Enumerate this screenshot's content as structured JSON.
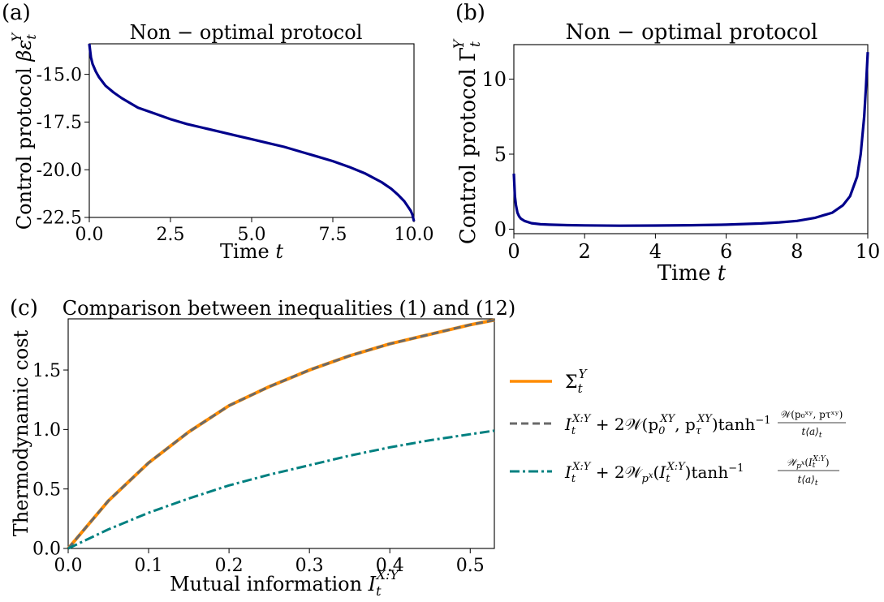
{
  "chart_data": [
    {
      "type": "line",
      "panel": "(a)",
      "title": "Non − optimal protocol",
      "xlabel": "Time t",
      "ylabel": "Control protocol βε_t^Y",
      "xlim": [
        0,
        10
      ],
      "ylim": [
        -22.5,
        -13.4
      ],
      "xticks": [
        "0.0",
        "2.5",
        "5.0",
        "7.5",
        "10.0"
      ],
      "yticks": [
        "-15.0",
        "-17.5",
        "-20.0",
        "-22.5"
      ],
      "grid": false,
      "series": [
        {
          "color": "#00008b",
          "x": [
            0,
            0.05,
            0.1,
            0.2,
            0.3,
            0.5,
            0.75,
            1,
            1.5,
            2,
            2.5,
            3,
            3.5,
            4,
            4.5,
            5,
            5.5,
            6,
            6.5,
            7,
            7.5,
            8,
            8.5,
            9,
            9.3,
            9.5,
            9.7,
            9.8,
            9.9,
            9.95,
            10
          ],
          "y": [
            -13.4,
            -14.1,
            -14.45,
            -14.85,
            -15.15,
            -15.6,
            -15.95,
            -16.25,
            -16.75,
            -17.05,
            -17.35,
            -17.6,
            -17.8,
            -18.0,
            -18.2,
            -18.4,
            -18.6,
            -18.8,
            -19.05,
            -19.3,
            -19.55,
            -19.85,
            -20.2,
            -20.65,
            -21.0,
            -21.3,
            -21.65,
            -21.9,
            -22.15,
            -22.35,
            -22.7
          ]
        }
      ]
    },
    {
      "type": "line",
      "panel": "(b)",
      "title": "Non − optimal protocol",
      "xlabel": "Time t",
      "ylabel": "Control protocol Γ_t^Y",
      "xlim": [
        0,
        10
      ],
      "ylim": [
        -0.3,
        12.3
      ],
      "xticks": [
        "0",
        "2",
        "4",
        "6",
        "8",
        "10"
      ],
      "yticks": [
        "0",
        "5",
        "10"
      ],
      "grid": false,
      "series": [
        {
          "color": "#00008b",
          "x": [
            0,
            0.03,
            0.06,
            0.1,
            0.15,
            0.2,
            0.3,
            0.5,
            0.75,
            1,
            1.5,
            2,
            3,
            4,
            5,
            6,
            7,
            7.5,
            8,
            8.5,
            9,
            9.3,
            9.5,
            9.7,
            9.8,
            9.9,
            9.95,
            10
          ],
          "y": [
            3.7,
            2.2,
            1.6,
            1.1,
            0.85,
            0.7,
            0.55,
            0.4,
            0.33,
            0.3,
            0.27,
            0.25,
            0.23,
            0.24,
            0.26,
            0.3,
            0.38,
            0.45,
            0.55,
            0.75,
            1.1,
            1.6,
            2.2,
            3.5,
            5.0,
            7.5,
            9.5,
            11.8
          ]
        }
      ]
    },
    {
      "type": "line",
      "panel": "(c)",
      "title": "Comparison between inequalities (1) and (12)",
      "xlabel": "Mutual information I_t^{X:Y}",
      "ylabel": "Thermodynamic cost",
      "xlim": [
        0,
        0.53
      ],
      "ylim": [
        0,
        1.93
      ],
      "xticks": [
        "0.0",
        "0.1",
        "0.2",
        "0.3",
        "0.4",
        "0.5"
      ],
      "yticks": [
        "0.0",
        "0.5",
        "1.0",
        "1.5"
      ],
      "grid": false,
      "legend_position": "right",
      "series": [
        {
          "color": "#ff8c00",
          "style": "solid",
          "x": [
            0,
            0.05,
            0.1,
            0.15,
            0.2,
            0.25,
            0.3,
            0.35,
            0.4,
            0.45,
            0.5,
            0.53
          ],
          "y": [
            0,
            0.4,
            0.72,
            0.98,
            1.2,
            1.36,
            1.5,
            1.62,
            1.72,
            1.8,
            1.88,
            1.92
          ]
        },
        {
          "color": "#696969",
          "style": "dashed",
          "x": [
            0,
            0.05,
            0.1,
            0.15,
            0.2,
            0.25,
            0.3,
            0.35,
            0.4,
            0.45,
            0.5,
            0.53
          ],
          "y": [
            0,
            0.4,
            0.72,
            0.98,
            1.2,
            1.36,
            1.5,
            1.62,
            1.72,
            1.8,
            1.88,
            1.92
          ]
        },
        {
          "color": "#008080",
          "style": "dashdot",
          "x": [
            0,
            0.05,
            0.1,
            0.15,
            0.2,
            0.25,
            0.3,
            0.35,
            0.4,
            0.45,
            0.5,
            0.53
          ],
          "y": [
            0,
            0.16,
            0.3,
            0.42,
            0.53,
            0.62,
            0.7,
            0.78,
            0.85,
            0.91,
            0.96,
            0.99
          ]
        }
      ]
    }
  ],
  "labels": {
    "panel_a": "(a)",
    "panel_b": "(b)",
    "panel_c": "(c)",
    "title_a_1": "Non",
    "title_a_2": "optimal protocol",
    "title_b_1": "Non",
    "title_b_2": "optimal protocol",
    "title_minus": "−",
    "title_c": "Comparison between inequalities (1) and (12)",
    "ylabel_a_text": "Control protocol ",
    "ylabel_a_sym": "βε",
    "ylabel_b_text": "Control protocol ",
    "ylabel_b_sym": "Γ",
    "sub_t": "t",
    "sup_Y": "Y",
    "xlabel_ab_text": "Time ",
    "xlabel_ab_sym": "t",
    "ylabel_c": "Thermodynamic cost",
    "xlabel_c_text": "Mutual information ",
    "xlabel_c_sym": "I",
    "sup_XY": "X:Y"
  },
  "legend": {
    "item1_sym": "Σ",
    "item2_part1": " + 2",
    "item2_part2": "(p",
    "item2_part3": ", p",
    "item2_part4": ")tanh",
    "item2_sup_neg1": "−1",
    "item2_W": "𝒲",
    "item2_sup_XY": "XY",
    "item2_sub_0": "0",
    "item2_sub_tau": "τ",
    "item2_frac_num": "𝒲(p₀ˣʸ, pτˣʸ)",
    "item2_frac_den": "t⟨a⟩",
    "item3_sub_px": "p",
    "item3_sup_x": "x",
    "item3_frac_num": "𝒲",
    "item3_frac_den": "t⟨a⟩",
    "I": "I",
    "t": "t",
    "XY": "X:Y",
    "Y": "Y"
  }
}
